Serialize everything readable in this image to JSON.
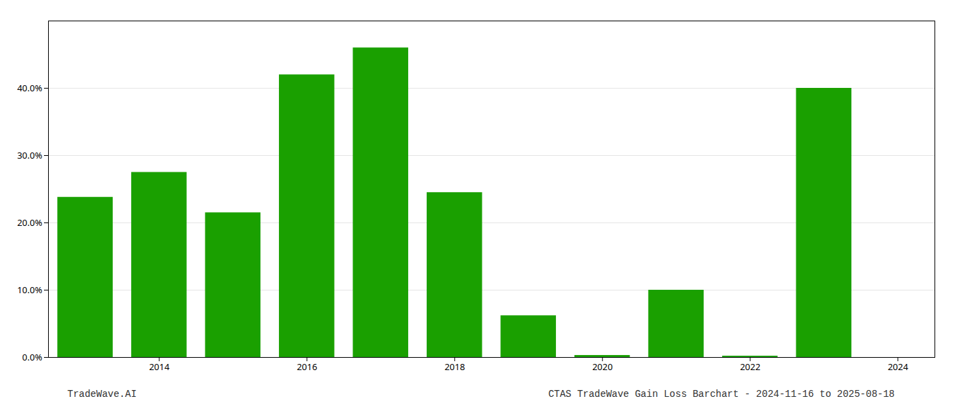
{
  "chart_data": {
    "type": "bar",
    "x": [
      2013,
      2014,
      2015,
      2016,
      2017,
      2018,
      2019,
      2020,
      2021,
      2022,
      2023
    ],
    "values": [
      0.238,
      0.275,
      0.215,
      0.42,
      0.46,
      0.245,
      0.062,
      0.003,
      0.1,
      0.002,
      0.4
    ],
    "color": "#1aa000",
    "xlim": [
      2012.5,
      2024.5
    ],
    "xticks": [
      2014,
      2016,
      2018,
      2020,
      2022,
      2024
    ],
    "ylim": [
      0,
      0.5
    ],
    "yticks": [
      {
        "value": 0.0,
        "label": "0.0%"
      },
      {
        "value": 0.1,
        "label": "10.0%"
      },
      {
        "value": 0.2,
        "label": "20.0%"
      },
      {
        "value": 0.3,
        "label": "30.0%"
      },
      {
        "value": 0.4,
        "label": "40.0%"
      }
    ],
    "grid": true,
    "annotations": [
      "TradeWave.AI",
      "CTAS TradeWave Gain Loss Barchart - 2024-11-16 to 2025-08-18"
    ]
  }
}
